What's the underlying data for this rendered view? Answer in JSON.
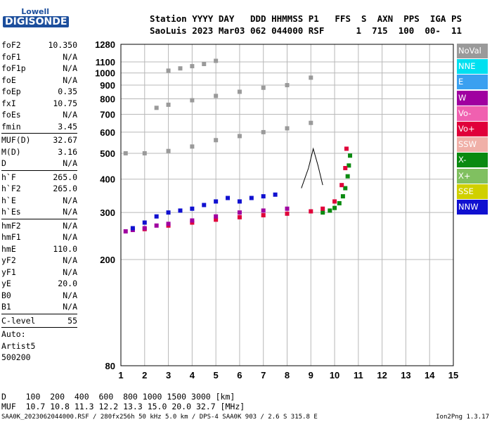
{
  "logo": {
    "line1": "Lowell",
    "line2": "DIGISONDE"
  },
  "header": {
    "line1": "Station YYYY DAY   DDD HHMMSS P1   FFS  S  AXN  PPS  IGA PS",
    "line2": "SaoLuis 2023 Mar03 062 044000 RSF      1  715  100  00-  11"
  },
  "params": [
    {
      "label": "foF2",
      "value": "10.350"
    },
    {
      "label": "foF1",
      "value": "N/A"
    },
    {
      "label": "foF1p",
      "value": "N/A"
    },
    {
      "label": "foE",
      "value": "N/A"
    },
    {
      "label": "foEp",
      "value": "0.35"
    },
    {
      "label": "fxI",
      "value": "10.75"
    },
    {
      "label": "foEs",
      "value": "N/A"
    },
    {
      "label": "fmin",
      "value": "3.45",
      "sep": true
    },
    {
      "label": "MUF(D)",
      "value": "32.67"
    },
    {
      "label": "M(D)",
      "value": "3.16"
    },
    {
      "label": "D",
      "value": "N/A",
      "sep": true
    },
    {
      "label": "h`F",
      "value": "265.0"
    },
    {
      "label": "h`F2",
      "value": "265.0"
    },
    {
      "label": "h`E",
      "value": "N/A"
    },
    {
      "label": "h`Es",
      "value": "N/A",
      "sep": true
    },
    {
      "label": "hmF2",
      "value": "N/A"
    },
    {
      "label": "hmF1",
      "value": "N/A"
    },
    {
      "label": "hmE",
      "value": "110.0"
    },
    {
      "label": "yF2",
      "value": "N/A"
    },
    {
      "label": "yF1",
      "value": "N/A"
    },
    {
      "label": "yE",
      "value": "20.0"
    },
    {
      "label": "B0",
      "value": "N/A"
    },
    {
      "label": "B1",
      "value": "N/A",
      "sep": true
    },
    {
      "label": "C-level",
      "value": "55",
      "sep": true
    },
    {
      "label": "Auto:",
      "value": ""
    },
    {
      "label": "Artist5",
      "value": ""
    },
    {
      "label": "500200",
      "value": ""
    }
  ],
  "legend": [
    {
      "label": "NoVal",
      "color": "#9a9a9a"
    },
    {
      "label": "NNE",
      "color": "#00e0f0"
    },
    {
      "label": "E",
      "color": "#3aa0f0"
    },
    {
      "label": "W",
      "color": "#a000a0"
    },
    {
      "label": "Vo-",
      "color": "#f060b0"
    },
    {
      "label": "Vo+",
      "color": "#e0003a"
    },
    {
      "label": "SSW",
      "color": "#f0b0a8"
    },
    {
      "label": "X-",
      "color": "#0a8a10"
    },
    {
      "label": "X+",
      "color": "#80c060"
    },
    {
      "label": "SSE",
      "color": "#d0d000"
    },
    {
      "label": "NNW",
      "color": "#1010d0"
    }
  ],
  "chart_data": {
    "type": "scatter",
    "title": "",
    "xlabel": "",
    "ylabel": "",
    "x_ticks": [
      1,
      2,
      3,
      4,
      5,
      6,
      7,
      8,
      9,
      10,
      11,
      12,
      13,
      14,
      15
    ],
    "y_ticks": [
      80,
      200,
      300,
      400,
      500,
      600,
      700,
      800,
      900,
      1000,
      1100,
      1280
    ],
    "xlim": [
      1,
      15
    ],
    "ylim": [
      80,
      1280
    ],
    "y_scale": "log",
    "grid": true,
    "series": [
      {
        "name": "X-",
        "values": [
          [
            9.5,
            300
          ],
          [
            9.8,
            305
          ],
          [
            10.0,
            312
          ],
          [
            10.2,
            325
          ],
          [
            10.35,
            345
          ],
          [
            10.45,
            370
          ],
          [
            10.55,
            410
          ],
          [
            10.6,
            450
          ],
          [
            10.65,
            490
          ]
        ]
      },
      {
        "name": "Vo+",
        "values": [
          [
            2.0,
            260
          ],
          [
            3.0,
            268
          ],
          [
            4.0,
            275
          ],
          [
            5.0,
            282
          ],
          [
            6.0,
            288
          ],
          [
            7.0,
            293
          ],
          [
            8.0,
            297
          ],
          [
            9.0,
            303
          ],
          [
            9.5,
            310
          ],
          [
            10.0,
            330
          ],
          [
            10.3,
            380
          ],
          [
            10.45,
            440
          ],
          [
            10.5,
            520
          ]
        ]
      },
      {
        "name": "W",
        "values": [
          [
            1.2,
            255
          ],
          [
            1.5,
            258
          ],
          [
            2.0,
            262
          ],
          [
            2.5,
            268
          ],
          [
            3.0,
            272
          ],
          [
            4.0,
            280
          ],
          [
            5.0,
            290
          ],
          [
            6.0,
            300
          ],
          [
            7.0,
            305
          ],
          [
            8.0,
            310
          ]
        ]
      },
      {
        "name": "NNW",
        "values": [
          [
            1.5,
            262
          ],
          [
            2.0,
            275
          ],
          [
            2.5,
            290
          ],
          [
            3.0,
            300
          ],
          [
            3.5,
            305
          ],
          [
            4.0,
            310
          ],
          [
            4.5,
            320
          ],
          [
            5.0,
            330
          ],
          [
            5.5,
            340
          ],
          [
            6.0,
            330
          ],
          [
            6.5,
            340
          ],
          [
            7.0,
            345
          ],
          [
            7.5,
            350
          ]
        ]
      },
      {
        "name": "NoVal",
        "values": [
          [
            1.2,
            500
          ],
          [
            2.0,
            500
          ],
          [
            3.0,
            510
          ],
          [
            4.0,
            530
          ],
          [
            5.0,
            560
          ],
          [
            6.0,
            580
          ],
          [
            7.0,
            600
          ],
          [
            8.0,
            620
          ],
          [
            9.0,
            650
          ],
          [
            2.5,
            740
          ],
          [
            3.0,
            760
          ],
          [
            4.0,
            790
          ],
          [
            5.0,
            820
          ],
          [
            6.0,
            850
          ],
          [
            7.0,
            880
          ],
          [
            8.0,
            900
          ],
          [
            9.0,
            960
          ],
          [
            3.0,
            1020
          ],
          [
            3.5,
            1040
          ],
          [
            4.0,
            1060
          ],
          [
            4.5,
            1080
          ],
          [
            5.0,
            1110
          ]
        ]
      }
    ],
    "trace": [
      [
        8.6,
        370
      ],
      [
        8.9,
        440
      ],
      [
        9.1,
        520
      ],
      [
        9.3,
        450
      ],
      [
        9.5,
        380
      ]
    ]
  },
  "footer": {
    "row1": "D    100  200  400  600  800 1000 1500 3000 [km]",
    "row2": "MUF  10.7 10.8 11.3 12.2 13.3 15.0 20.0 32.7 [MHz]",
    "line3": "SAA0K_2023062044000.RSF / 280fx256h 50 kHz 5.0 km / DPS-4 SAA0K 903 / 2.6 S 315.8 E",
    "version": "Ion2Png 1.3.17"
  }
}
